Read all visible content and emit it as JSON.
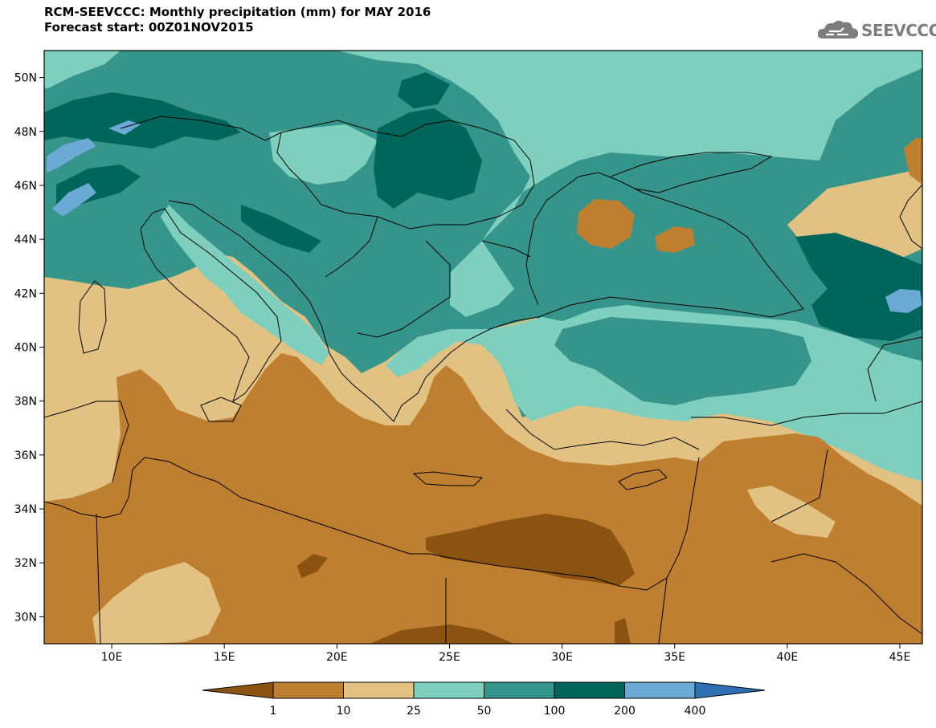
{
  "title": {
    "line1": "RCM-SEEVCCC: Monthly precipitation (mm) for MAY 2016",
    "line2": "Forecast start: 00Z01NOV2015"
  },
  "logo": {
    "text": "SEEVCCC",
    "icon": "cloud-icon"
  },
  "map": {
    "lon_range": [
      7,
      46
    ],
    "lat_range": [
      29,
      51
    ],
    "lat_ticks": [
      {
        "value": 50,
        "label": "50N"
      },
      {
        "value": 48,
        "label": "48N"
      },
      {
        "value": 46,
        "label": "46N"
      },
      {
        "value": 44,
        "label": "44N"
      },
      {
        "value": 42,
        "label": "42N"
      },
      {
        "value": 40,
        "label": "40N"
      },
      {
        "value": 38,
        "label": "38N"
      },
      {
        "value": 36,
        "label": "36N"
      },
      {
        "value": 34,
        "label": "34N"
      },
      {
        "value": 32,
        "label": "32N"
      },
      {
        "value": 30,
        "label": "30N"
      }
    ],
    "lon_ticks": [
      {
        "value": 10,
        "label": "10E"
      },
      {
        "value": 15,
        "label": "15E"
      },
      {
        "value": 20,
        "label": "20E"
      },
      {
        "value": 25,
        "label": "25E"
      },
      {
        "value": 30,
        "label": "30E"
      },
      {
        "value": 35,
        "label": "35E"
      },
      {
        "value": 40,
        "label": "40E"
      },
      {
        "value": 45,
        "label": "45E"
      }
    ]
  },
  "legend": {
    "unit": "mm",
    "colors": [
      "#8a5312",
      "#be7f30",
      "#e2c283",
      "#7fcfbf",
      "#35958b",
      "#00665c",
      "#6aaad5",
      "#2f6fb3"
    ],
    "labels": [
      "1",
      "10",
      "25",
      "50",
      "100",
      "200",
      "400"
    ]
  }
}
